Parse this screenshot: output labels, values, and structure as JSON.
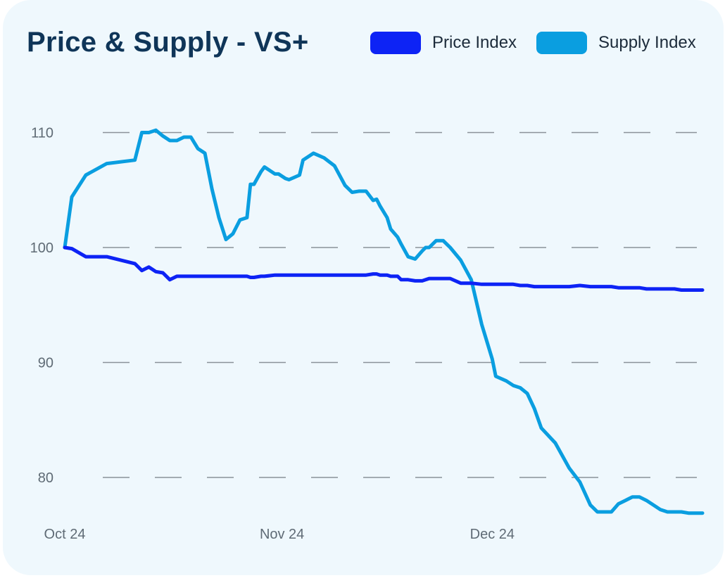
{
  "chart_data": {
    "type": "line",
    "title": "Price & Supply - VS+",
    "xlabel": "",
    "ylabel": "",
    "ylim": [
      76.5,
      114
    ],
    "yticks": [
      80,
      90,
      100,
      110
    ],
    "xticks": [
      {
        "label": "Oct 24",
        "x": 0
      },
      {
        "label": "Nov 24",
        "x": 31
      },
      {
        "label": "Dec 24",
        "x": 61
      }
    ],
    "grid": "horizontal dashed",
    "legend": "top-right",
    "x": [
      0,
      1,
      3,
      6,
      10,
      11,
      12,
      13,
      14,
      15,
      16,
      17,
      18,
      19,
      20,
      21,
      22,
      23,
      24,
      25,
      26,
      26.5,
      27,
      28,
      28.5,
      30,
      30.5,
      31.5,
      32,
      33.5,
      34,
      35.5,
      37,
      38.5,
      40,
      41,
      42,
      43,
      44,
      44.5,
      45,
      46,
      46.5,
      47.5,
      48,
      49,
      50,
      51,
      51.5,
      52,
      53,
      54,
      55,
      56.5,
      58,
      59.5,
      61,
      61.5,
      63,
      64,
      65,
      66,
      67,
      68,
      70,
      72,
      73.5,
      75,
      76,
      77,
      78,
      79,
      80,
      81,
      82,
      83,
      84,
      85,
      86,
      87,
      88,
      89,
      90,
      91
    ],
    "series": [
      {
        "name": "Price Index",
        "color": "#0d23f5",
        "values": [
          100,
          99.9,
          99.2,
          99.2,
          98.6,
          98.0,
          98.3,
          97.9,
          97.8,
          97.2,
          97.5,
          97.5,
          97.5,
          97.5,
          97.5,
          97.5,
          97.5,
          97.5,
          97.5,
          97.5,
          97.5,
          97.4,
          97.4,
          97.5,
          97.5,
          97.6,
          97.6,
          97.6,
          97.6,
          97.6,
          97.6,
          97.6,
          97.6,
          97.6,
          97.6,
          97.6,
          97.6,
          97.6,
          97.7,
          97.7,
          97.6,
          97.6,
          97.5,
          97.5,
          97.2,
          97.2,
          97.1,
          97.1,
          97.2,
          97.3,
          97.3,
          97.3,
          97.3,
          96.9,
          96.9,
          96.8,
          96.8,
          96.8,
          96.8,
          96.8,
          96.7,
          96.7,
          96.6,
          96.6,
          96.6,
          96.6,
          96.7,
          96.6,
          96.6,
          96.6,
          96.6,
          96.5,
          96.5,
          96.5,
          96.5,
          96.4,
          96.4,
          96.4,
          96.4,
          96.4,
          96.3,
          96.3,
          96.3,
          96.3
        ]
      },
      {
        "name": "Supply Index",
        "color": "#0a9ee0",
        "values": [
          100,
          104.4,
          106.3,
          107.3,
          107.6,
          110,
          110,
          110.2,
          109.7,
          109.3,
          109.3,
          109.6,
          109.6,
          108.6,
          108.2,
          105.1,
          102.6,
          100.7,
          101.2,
          102.4,
          102.6,
          105.5,
          105.5,
          106.6,
          107.0,
          106.4,
          106.4,
          106.0,
          105.9,
          106.3,
          107.6,
          108.2,
          107.8,
          107.1,
          105.4,
          104.8,
          104.9,
          104.9,
          104.1,
          104.2,
          103.6,
          102.6,
          101.6,
          100.9,
          100.3,
          99.2,
          99.0,
          99.7,
          100.0,
          100.0,
          100.6,
          100.6,
          100.0,
          98.9,
          97.2,
          93.3,
          90.3,
          88.8,
          88.4,
          88.0,
          87.8,
          87.3,
          86.0,
          84.3,
          83.0,
          80.8,
          79.6,
          77.6,
          77.0,
          77.0,
          77.0,
          77.7,
          78.0,
          78.3,
          78.3,
          78.0,
          77.6,
          77.2,
          77.0,
          77.0,
          77.0,
          76.9,
          76.9,
          76.9
        ]
      }
    ]
  }
}
